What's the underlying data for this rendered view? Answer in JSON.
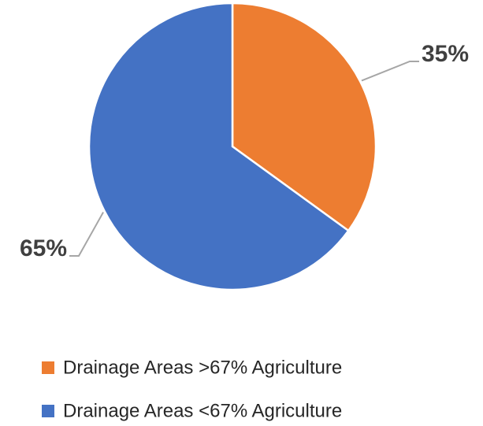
{
  "chart_data": {
    "type": "pie",
    "categories": [
      "Drainage Areas >67% Agriculture",
      "Drainage Areas <67% Agriculture"
    ],
    "values": [
      35,
      65
    ],
    "value_labels": [
      "35%",
      "65%"
    ],
    "colors": [
      "#ed7d31",
      "#4472c4"
    ],
    "legend": "bottom"
  }
}
